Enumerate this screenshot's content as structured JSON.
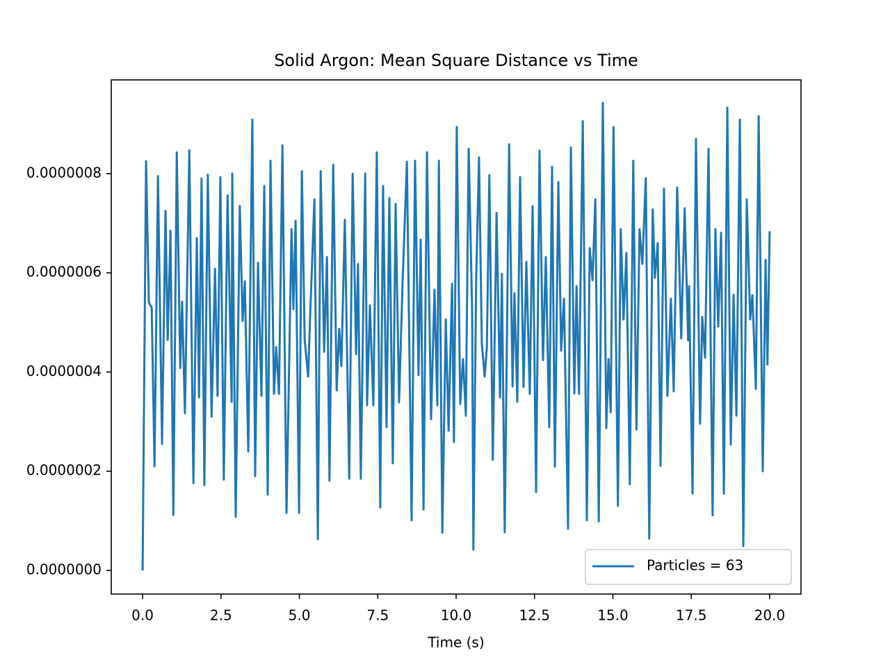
{
  "chart_data": {
    "type": "line",
    "title": "Solid Argon: Mean Square Distance vs Time",
    "x_label": "Time (s)",
    "x": [
      0,
      0.11,
      0.2,
      0.29,
      0.38,
      0.49,
      0.62,
      0.73,
      0.8,
      0.89,
      0.98,
      1.09,
      1.2,
      1.26,
      1.35,
      1.49,
      1.62,
      1.73,
      1.8,
      1.88,
      1.97,
      2.08,
      2.2,
      2.31,
      2.39,
      2.48,
      2.59,
      2.71,
      2.84,
      2.86,
      2.97,
      3.1,
      3.19,
      3.26,
      3.37,
      3.5,
      3.59,
      3.68,
      3.79,
      3.88,
      3.99,
      4.08,
      4.19,
      4.26,
      4.35,
      4.46,
      4.59,
      4.75,
      4.81,
      4.88,
      4.99,
      5.08,
      5.17,
      5.28,
      5.34,
      5.48,
      5.59,
      5.68,
      5.79,
      5.88,
      5.96,
      6.08,
      6.19,
      6.27,
      6.34,
      6.45,
      6.59,
      6.7,
      6.81,
      6.87,
      6.96,
      7.1,
      7.16,
      7.25,
      7.36,
      7.47,
      7.58,
      7.67,
      7.78,
      7.87,
      7.98,
      8.07,
      8.18,
      8.29,
      8.43,
      8.58,
      8.69,
      8.8,
      8.87,
      8.96,
      9.07,
      9.2,
      9.31,
      9.4,
      9.45,
      9.56,
      9.67,
      9.76,
      9.87,
      9.93,
      10.02,
      10.13,
      10.22,
      10.31,
      10.4,
      10.51,
      10.55,
      10.64,
      10.73,
      10.82,
      10.91,
      10.98,
      11.06,
      11.17,
      11.29,
      11.4,
      11.46,
      11.55,
      11.69,
      11.8,
      11.86,
      11.95,
      12.04,
      12.15,
      12.24,
      12.35,
      12.44,
      12.55,
      12.66,
      12.77,
      12.86,
      12.97,
      13.06,
      13.15,
      13.26,
      13.35,
      13.44,
      13.57,
      13.66,
      13.77,
      13.84,
      13.92,
      14.04,
      14.17,
      14.26,
      14.35,
      14.44,
      14.55,
      14.68,
      14.79,
      14.86,
      14.93,
      15.02,
      15.16,
      15.25,
      15.34,
      15.43,
      15.54,
      15.65,
      15.75,
      15.85,
      15.94,
      16.05,
      16.16,
      16.27,
      16.34,
      16.43,
      16.52,
      16.63,
      16.74,
      16.85,
      16.94,
      17.05,
      17.18,
      17.29,
      17.4,
      17.43,
      17.54,
      17.65,
      17.78,
      17.85,
      17.94,
      18.05,
      18.18,
      18.27,
      18.36,
      18.45,
      18.54,
      18.65,
      18.76,
      18.85,
      18.94,
      19.05,
      19.16,
      19.27,
      19.38,
      19.45,
      19.56,
      19.65,
      19.78,
      19.87,
      19.93,
      20.0
    ],
    "series": [
      {
        "name": "Particles = 63",
        "color": "#1f77b4",
        "values": [
          0,
          8.25e-07,
          5.4e-07,
          5.3e-07,
          2.1e-07,
          7.95e-07,
          2.55e-07,
          7.25e-07,
          4.65e-07,
          6.85e-07,
          1.12e-07,
          8.43e-07,
          4.08e-07,
          5.42e-07,
          3.17e-07,
          8.47e-07,
          1.76e-07,
          6.7e-07,
          3.49e-07,
          7.9e-07,
          1.72e-07,
          7.98e-07,
          3.1e-07,
          6.08e-07,
          3.52e-07,
          7.93e-07,
          1.83e-07,
          7.56e-07,
          3.4e-07,
          8e-07,
          1.08e-07,
          7.35e-07,
          5.03e-07,
          5.83e-07,
          2.4e-07,
          9.09e-07,
          1.9e-07,
          6.2e-07,
          3.52e-07,
          7.75e-07,
          1.53e-07,
          8.26e-07,
          3.56e-07,
          4.5e-07,
          3.56e-07,
          8.57e-07,
          1.16e-07,
          6.88e-07,
          5.27e-07,
          7.05e-07,
          1.16e-07,
          8.05e-07,
          4.64e-07,
          3.91e-07,
          5.06e-07,
          7.48e-07,
          6.3e-08,
          8.05e-07,
          4.41e-07,
          6.32e-07,
          1.81e-07,
          8.18e-07,
          3.63e-07,
          4.87e-07,
          4.12e-07,
          7.07e-07,
          1.85e-07,
          8e-07,
          4.36e-07,
          6.18e-07,
          1.85e-07,
          8e-07,
          3.33e-07,
          5.34e-07,
          3.33e-07,
          8.43e-07,
          1.27e-07,
          7.75e-07,
          2.89e-07,
          7.51e-07,
          2.16e-07,
          7.39e-07,
          3.39e-07,
          5.76e-07,
          8.24e-07,
          1.01e-07,
          8.26e-07,
          3.94e-07,
          6.67e-07,
          1.23e-07,
          8.43e-07,
          3.05e-07,
          5.66e-07,
          3.33e-07,
          8.26e-07,
          7.6e-08,
          5.06e-07,
          2.82e-07,
          5.78e-07,
          2.59e-07,
          8.94e-07,
          3.36e-07,
          4.26e-07,
          3.12e-07,
          8.5e-07,
          5.27e-07,
          4.2e-08,
          5.9e-07,
          8.33e-07,
          4.57e-07,
          3.91e-07,
          4.5e-07,
          7.97e-07,
          2.23e-07,
          7.21e-07,
          3.49e-07,
          5.98e-07,
          7.7e-08,
          8.59e-07,
          3.71e-07,
          5.59e-07,
          3.4e-07,
          7.93e-07,
          3.7e-07,
          6.22e-07,
          3.56e-07,
          7.34e-07,
          1.58e-07,
          8.46e-07,
          4.24e-07,
          6.32e-07,
          2.89e-07,
          8.14e-07,
          2.09e-07,
          7.83e-07,
          4.43e-07,
          5.48e-07,
          8.4e-08,
          8.53e-07,
          3.57e-07,
          5.73e-07,
          3.56e-07,
          9.06e-07,
          1.01e-07,
          6.5e-07,
          5.85e-07,
          7.48e-07,
          9.9e-08,
          9.43e-07,
          2.87e-07,
          4.26e-07,
          3.19e-07,
          8.94e-07,
          1.3e-07,
          6.88e-07,
          5.06e-07,
          6.4e-07,
          1.74e-07,
          8.26e-07,
          2.84e-07,
          6.88e-07,
          6.18e-07,
          7.91e-07,
          6.4e-08,
          7.28e-07,
          5.9e-07,
          6.6e-07,
          2.11e-07,
          7.7e-07,
          3.52e-07,
          5.48e-07,
          3.61e-07,
          7.72e-07,
          4.68e-07,
          7.3e-07,
          4.64e-07,
          5.73e-07,
          1.55e-07,
          8.7e-07,
          2.96e-07,
          5.11e-07,
          4.29e-07,
          8.5e-07,
          1.11e-07,
          6.88e-07,
          4.92e-07,
          6.81e-07,
          1.55e-07,
          9.33e-07,
          2.54e-07,
          5.56e-07,
          3.12e-07,
          9.09e-07,
          4.9e-08,
          7.48e-07,
          5.06e-07,
          5.55e-07,
          3.66e-07,
          9.16e-07,
          2e-07,
          6.26e-07,
          4.15e-07,
          6.84e-07
        ]
      }
    ],
    "xlim": [
      -1.0,
      21.0
    ],
    "xticks": [
      {
        "value": 0,
        "label": "0.0"
      },
      2.5,
      {
        "value": 5,
        "label": "5.0"
      },
      7.5,
      {
        "value": 10,
        "label": "10.0"
      },
      12.5,
      {
        "value": 15,
        "label": "15.0"
      },
      17.5,
      {
        "value": 20,
        "label": "20.0"
      }
    ],
    "ylim": [
      -4.76e-08,
      9.89e-07
    ],
    "yticks": [
      {
        "value": 0,
        "label": "0.0000000"
      },
      {
        "value": 2e-07,
        "label": "0.0000002"
      },
      {
        "value": 4e-07,
        "label": "0.0000004"
      },
      {
        "value": 6e-07,
        "label": "0.0000006"
      },
      {
        "value": 8e-07,
        "label": "0.0000008"
      }
    ],
    "legend_loc": "lower right",
    "grid": false
  }
}
